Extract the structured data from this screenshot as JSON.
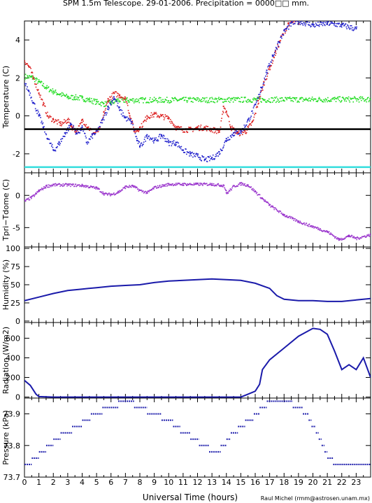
{
  "title": "SPM 1.5m Telescope. 29-01-2006. Precipitation = 0000□□ mm.",
  "xlabel": "Universal Time (hours)",
  "credit": "Raul Michel (rmm@astrosen.unam.mx)",
  "colors": {
    "green": "#22dd22",
    "red": "#dd2222",
    "blue": "#2222cc",
    "black": "#000000",
    "cyan": "#33dddd",
    "purple": "#9933cc",
    "navy": "#1a1aaa"
  },
  "chart_data": [
    {
      "type": "scatter",
      "ylabel": "Temperature (C)",
      "xlim": [
        0,
        24
      ],
      "ylim": [
        -3,
        5
      ],
      "yticks": [
        4,
        2,
        0,
        -2
      ],
      "series": [
        {
          "color": "green",
          "style": "points",
          "points": [
            [
              0,
              2.1
            ],
            [
              0.5,
              2.05
            ],
            [
              1,
              1.8
            ],
            [
              1.5,
              1.5
            ],
            [
              2,
              1.3
            ],
            [
              2.5,
              1.15
            ],
            [
              3,
              1.0
            ],
            [
              3.5,
              1.0
            ],
            [
              4,
              0.95
            ],
            [
              4.5,
              0.85
            ],
            [
              5,
              0.75
            ],
            [
              5.5,
              0.65
            ],
            [
              6,
              0.7
            ],
            [
              6.4,
              0.85
            ],
            [
              24,
              0.9
            ]
          ]
        },
        {
          "color": "red",
          "style": "points",
          "points": [
            [
              0,
              2.9
            ],
            [
              0.3,
              2.6
            ],
            [
              0.6,
              2.0
            ],
            [
              1,
              1.2
            ],
            [
              1.3,
              0.6
            ],
            [
              1.6,
              0.0
            ],
            [
              2,
              -0.2
            ],
            [
              2.5,
              -0.4
            ],
            [
              3,
              -0.2
            ],
            [
              3.3,
              -0.6
            ],
            [
              3.6,
              -0.8
            ],
            [
              4,
              -0.2
            ],
            [
              4.4,
              -0.6
            ],
            [
              4.8,
              -0.9
            ],
            [
              5.2,
              -0.7
            ],
            [
              5.5,
              0.2
            ],
            [
              5.8,
              0.9
            ],
            [
              6.2,
              1.2
            ],
            [
              6.6,
              1.1
            ],
            [
              7,
              0.9
            ],
            [
              7.3,
              0.0
            ],
            [
              7.6,
              -0.8
            ],
            [
              8,
              -0.6
            ],
            [
              8.5,
              0.0
            ],
            [
              9,
              0.1
            ],
            [
              9.5,
              0.0
            ],
            [
              10,
              -0.1
            ],
            [
              10.5,
              -0.6
            ],
            [
              11,
              -0.7
            ],
            [
              11.5,
              -0.7
            ],
            [
              12,
              -0.6
            ],
            [
              12.5,
              -0.6
            ],
            [
              13,
              -0.7
            ],
            [
              13.5,
              -0.8
            ],
            [
              13.8,
              0.5
            ],
            [
              14,
              0.2
            ],
            [
              14.3,
              -0.6
            ],
            [
              14.8,
              -0.9
            ],
            [
              15.3,
              -0.8
            ],
            [
              15.8,
              -0.3
            ],
            [
              16.2,
              0.8
            ],
            [
              16.6,
              1.8
            ],
            [
              17,
              2.6
            ],
            [
              17.4,
              3.4
            ],
            [
              17.8,
              4.2
            ],
            [
              18.3,
              4.9
            ],
            [
              19,
              5.0
            ]
          ]
        },
        {
          "color": "blue",
          "style": "points",
          "points": [
            [
              0,
              1.7
            ],
            [
              0.3,
              1.3
            ],
            [
              0.6,
              0.7
            ],
            [
              1,
              0.0
            ],
            [
              1.3,
              -0.6
            ],
            [
              1.6,
              -1.2
            ],
            [
              2,
              -1.8
            ],
            [
              2.4,
              -1.4
            ],
            [
              2.8,
              -0.9
            ],
            [
              3.2,
              -0.4
            ],
            [
              3.6,
              -0.9
            ],
            [
              4,
              -0.6
            ],
            [
              4.3,
              -1.4
            ],
            [
              4.7,
              -1.0
            ],
            [
              5,
              -0.8
            ],
            [
              5.4,
              -0.2
            ],
            [
              5.8,
              0.5
            ],
            [
              6.2,
              1.0
            ],
            [
              6.6,
              0.3
            ],
            [
              7,
              -0.1
            ],
            [
              7.4,
              -0.3
            ],
            [
              7.8,
              -1.3
            ],
            [
              8,
              -1.6
            ],
            [
              8.5,
              -1.0
            ],
            [
              9,
              -1.3
            ],
            [
              9.5,
              -1.0
            ],
            [
              10,
              -1.4
            ],
            [
              10.5,
              -1.4
            ],
            [
              11,
              -1.8
            ],
            [
              11.5,
              -2.0
            ],
            [
              12,
              -2.1
            ],
            [
              12.5,
              -2.3
            ],
            [
              13,
              -2.2
            ],
            [
              13.5,
              -1.9
            ],
            [
              14,
              -1.2
            ],
            [
              14.5,
              -0.9
            ],
            [
              15,
              -0.8
            ],
            [
              15.5,
              -0.2
            ],
            [
              16,
              0.6
            ],
            [
              16.4,
              1.5
            ],
            [
              16.8,
              2.4
            ],
            [
              17.2,
              3.2
            ],
            [
              17.6,
              3.9
            ],
            [
              18,
              4.5
            ],
            [
              18.5,
              4.9
            ],
            [
              19,
              5.0
            ],
            [
              20,
              4.8
            ],
            [
              21,
              4.9
            ],
            [
              22,
              4.8
            ],
            [
              23,
              4.6
            ]
          ]
        },
        {
          "color": "black",
          "style": "hline",
          "points": [
            [
              0,
              -0.7
            ],
            [
              24,
              -0.7
            ]
          ]
        },
        {
          "color": "cyan",
          "style": "hline",
          "points": [
            [
              0,
              -2.7
            ],
            [
              24,
              -2.7
            ]
          ]
        }
      ]
    },
    {
      "type": "scatter",
      "ylabel": "Tpri−Tdome (C)",
      "xlim": [
        0,
        24
      ],
      "ylim": [
        -8,
        3.5
      ],
      "yticks": [
        0,
        -5
      ],
      "series": [
        {
          "color": "purple",
          "style": "points",
          "points": [
            [
              0,
              -0.8
            ],
            [
              0.5,
              -0.2
            ],
            [
              1,
              0.8
            ],
            [
              1.5,
              1.5
            ],
            [
              2,
              1.7
            ],
            [
              3,
              1.7
            ],
            [
              4,
              1.6
            ],
            [
              5,
              1.2
            ],
            [
              5.5,
              0.3
            ],
            [
              6,
              0.2
            ],
            [
              6.5,
              0.6
            ],
            [
              7,
              1.4
            ],
            [
              7.5,
              1.5
            ],
            [
              8,
              0.8
            ],
            [
              8.5,
              0.5
            ],
            [
              9,
              1.3
            ],
            [
              10,
              1.8
            ],
            [
              11,
              1.8
            ],
            [
              12,
              1.8
            ],
            [
              13,
              1.8
            ],
            [
              13.8,
              1.6
            ],
            [
              14,
              0.4
            ],
            [
              14.5,
              1.5
            ],
            [
              15,
              1.9
            ],
            [
              15.5,
              1.6
            ],
            [
              16,
              0.6
            ],
            [
              16.5,
              -0.5
            ],
            [
              17,
              -1.5
            ],
            [
              18,
              -3.0
            ],
            [
              19,
              -4.0
            ],
            [
              20,
              -4.8
            ],
            [
              21,
              -5.6
            ],
            [
              21.8,
              -6.8
            ],
            [
              22.5,
              -6.2
            ],
            [
              23,
              -6.6
            ],
            [
              24,
              -6.0
            ]
          ]
        }
      ]
    },
    {
      "type": "line",
      "ylabel": "Humidity (%)",
      "xlim": [
        0,
        24
      ],
      "ylim": [
        -2,
        102
      ],
      "yticks": [
        100,
        75,
        50,
        25,
        0
      ],
      "series": [
        {
          "color": "navy",
          "style": "line",
          "points": [
            [
              0,
              28
            ],
            [
              1,
              33
            ],
            [
              2,
              38
            ],
            [
              3,
              42
            ],
            [
              4,
              44
            ],
            [
              5,
              46
            ],
            [
              6,
              48
            ],
            [
              7,
              49
            ],
            [
              8,
              50
            ],
            [
              9,
              53
            ],
            [
              10,
              55
            ],
            [
              11,
              56
            ],
            [
              12,
              57
            ],
            [
              13,
              58
            ],
            [
              14,
              57
            ],
            [
              15,
              56
            ],
            [
              16,
              52
            ],
            [
              17,
              45
            ],
            [
              17.5,
              35
            ],
            [
              18,
              30
            ],
            [
              19,
              28
            ],
            [
              20,
              28
            ],
            [
              21,
              27
            ],
            [
              22,
              27
            ],
            [
              23,
              29
            ],
            [
              24,
              31
            ]
          ]
        }
      ]
    },
    {
      "type": "line",
      "ylabel": "Radiation (W/m2)",
      "xlim": [
        0,
        24
      ],
      "ylim": [
        -10,
        760
      ],
      "yticks": [
        600,
        400,
        200,
        0
      ],
      "series": [
        {
          "color": "navy",
          "style": "line",
          "points": [
            [
              0,
              170
            ],
            [
              0.4,
              120
            ],
            [
              0.8,
              30
            ],
            [
              1,
              5
            ],
            [
              2,
              0
            ],
            [
              15,
              0
            ],
            [
              15.5,
              30
            ],
            [
              16,
              60
            ],
            [
              16.3,
              130
            ],
            [
              16.5,
              280
            ],
            [
              17,
              380
            ],
            [
              18,
              500
            ],
            [
              19,
              620
            ],
            [
              20,
              700
            ],
            [
              20.5,
              690
            ],
            [
              21,
              640
            ],
            [
              21.5,
              470
            ],
            [
              22,
              280
            ],
            [
              22.5,
              330
            ],
            [
              23,
              280
            ],
            [
              23.5,
              400
            ],
            [
              24,
              200
            ]
          ]
        }
      ]
    },
    {
      "type": "scatter",
      "ylabel": "Pressure (kPa)",
      "xlim": [
        0,
        24
      ],
      "ylim": [
        73.7,
        73.95
      ],
      "yticks": [
        73.9,
        73.8,
        73.7
      ],
      "series": [
        {
          "color": "navy",
          "style": "steps",
          "points": [
            [
              0,
              73.74
            ],
            [
              0.5,
              73.76
            ],
            [
              1,
              73.78
            ],
            [
              1.5,
              73.8
            ],
            [
              2,
              73.82
            ],
            [
              2.5,
              73.84
            ],
            [
              3.3,
              73.86
            ],
            [
              4,
              73.88
            ],
            [
              4.6,
              73.9
            ],
            [
              5.4,
              73.92
            ],
            [
              6.5,
              73.94
            ],
            [
              7.6,
              73.92
            ],
            [
              8.5,
              73.9
            ],
            [
              9.5,
              73.88
            ],
            [
              10.3,
              73.86
            ],
            [
              10.8,
              73.84
            ],
            [
              11.5,
              73.82
            ],
            [
              12.1,
              73.8
            ],
            [
              12.8,
              73.78
            ],
            [
              13.6,
              73.8
            ],
            [
              14,
              73.82
            ],
            [
              14.3,
              73.84
            ],
            [
              14.8,
              73.86
            ],
            [
              15.3,
              73.88
            ],
            [
              15.9,
              73.9
            ],
            [
              16.3,
              73.92
            ],
            [
              16.8,
              73.94
            ],
            [
              18,
              73.94
            ],
            [
              18.6,
              73.92
            ],
            [
              19.3,
              73.9
            ],
            [
              19.7,
              73.88
            ],
            [
              19.9,
              73.86
            ],
            [
              20.2,
              73.84
            ],
            [
              20.4,
              73.82
            ],
            [
              20.6,
              73.8
            ],
            [
              20.8,
              73.78
            ],
            [
              21,
              73.76
            ],
            [
              21.4,
              73.74
            ],
            [
              24,
              73.74
            ]
          ]
        }
      ]
    }
  ]
}
